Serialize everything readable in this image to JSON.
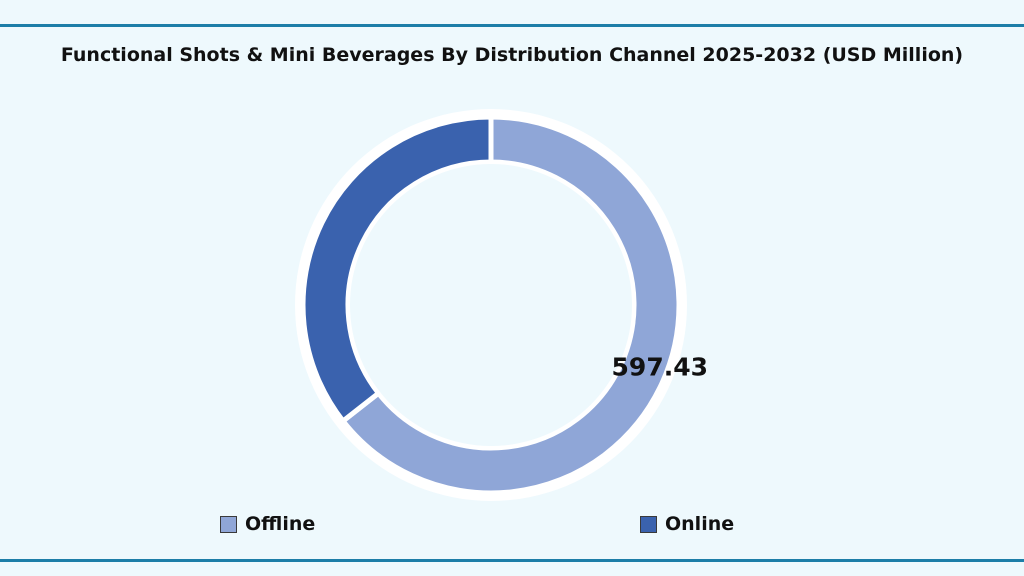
{
  "chart_data": {
    "type": "pie",
    "variant": "donut",
    "title": "Functional Shots & Mini Beverages By Distribution Channel 2025-2032 (USD Million)",
    "categories": [
      "Offline",
      "Online"
    ],
    "values": [
      597.43,
      330
    ],
    "data_labels": [
      "597.43",
      ""
    ],
    "colors": [
      "#8fa6d7",
      "#3a62ae"
    ],
    "legend": {
      "position": "bottom",
      "entries": [
        "Offline",
        "Online"
      ]
    }
  }
}
